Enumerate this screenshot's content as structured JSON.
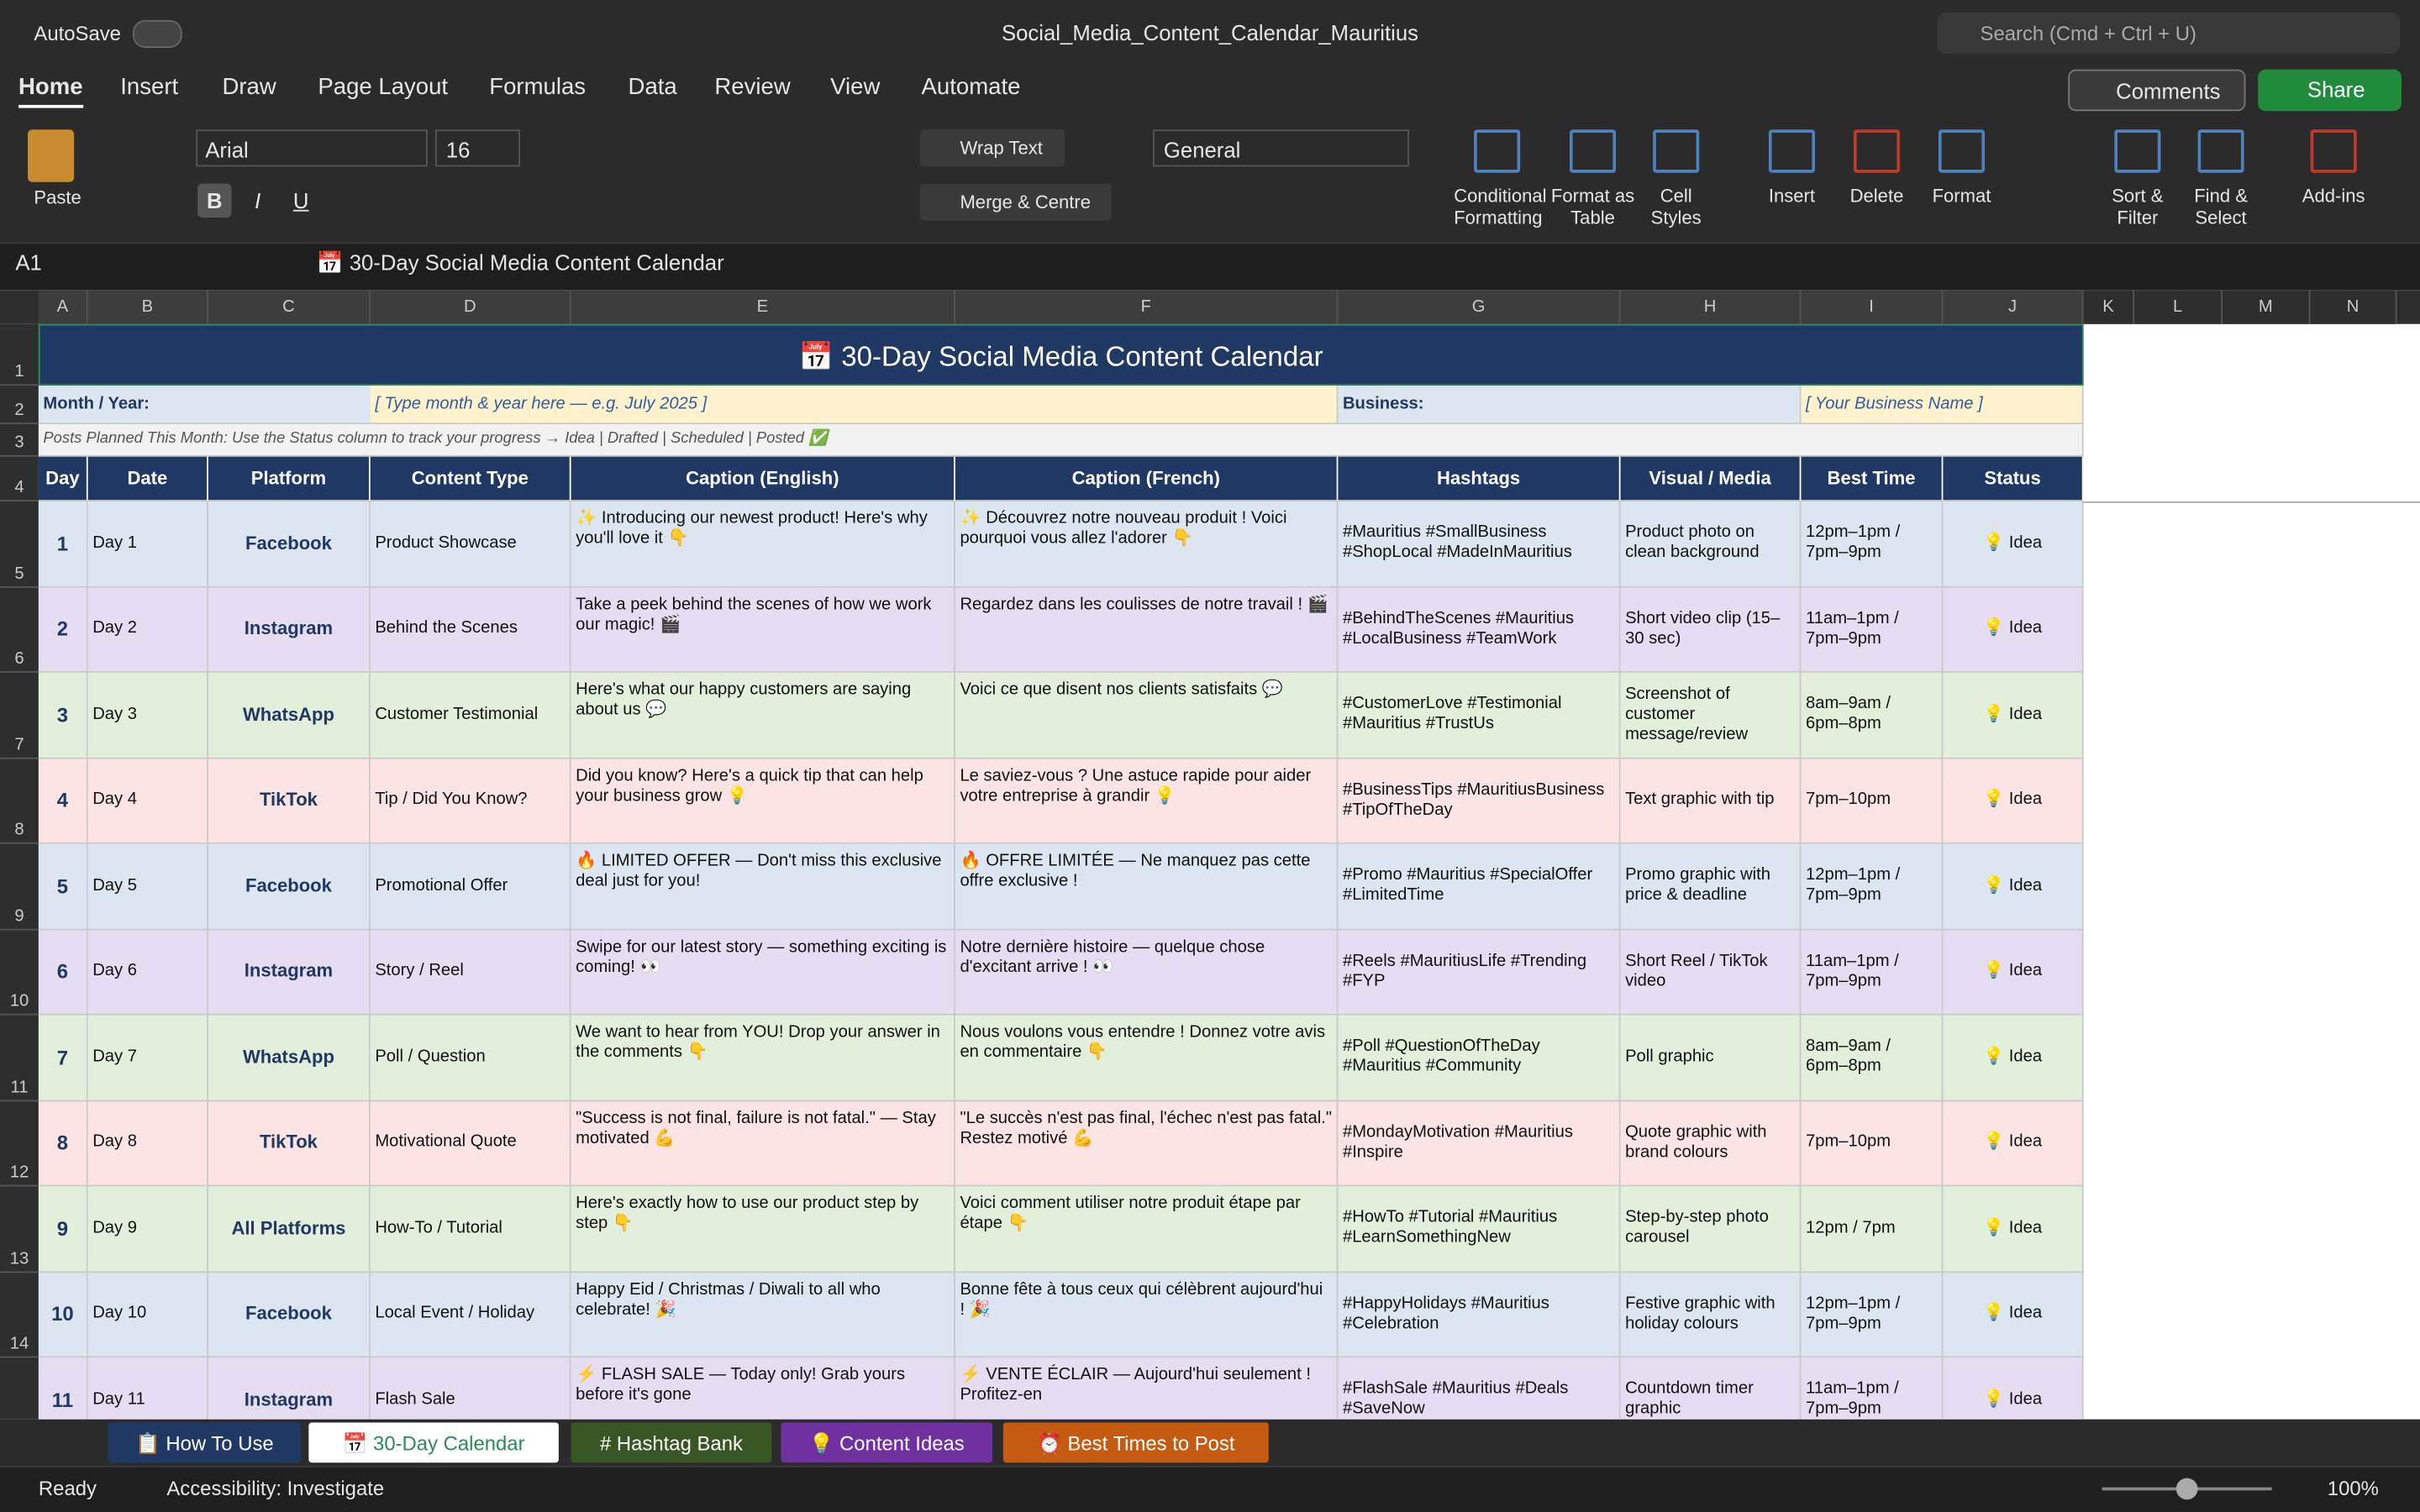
{
  "titlebar": {
    "autosave": "AutoSave",
    "filename": "Social_Media_Content_Calendar_Mauritius",
    "search": "Search (Cmd + Ctrl + U)"
  },
  "menu": [
    "Home",
    "Insert",
    "Draw",
    "Page Layout",
    "Formulas",
    "Data",
    "Review",
    "View",
    "Automate"
  ],
  "buttons": {
    "comments": "Comments",
    "share": "Share"
  },
  "ribbon": {
    "paste": "Paste",
    "font": "Arial",
    "size": "16",
    "style_buttons": [
      "B",
      "I",
      "U"
    ],
    "wrap": "Wrap Text",
    "merge": "Merge & Centre",
    "number_format": "General",
    "groups": [
      "Conditional Formatting",
      "Format as Table",
      "Cell Styles",
      "Insert",
      "Delete",
      "Format",
      "Sort & Filter",
      "Find & Select",
      "Add-ins"
    ]
  },
  "formula_bar": {
    "cell": "A1",
    "formula": "📅 30-Day Social Media Content Calendar"
  },
  "columns": [
    "A",
    "B",
    "C",
    "D",
    "E",
    "F",
    "G",
    "H",
    "I",
    "J",
    "K",
    "L",
    "M",
    "N"
  ],
  "row_numbers": [
    1,
    2,
    3,
    4,
    5,
    6,
    7,
    8,
    9,
    10,
    11,
    12,
    13,
    14
  ],
  "sheet": {
    "title": "📅 30-Day Social Media Content Calendar",
    "month_label": "Month / Year:",
    "month_value": "[ Type month & year here — e.g. July 2025 ]",
    "business_label": "Business:",
    "business_value": "[ Your Business Name ]",
    "note": "Posts Planned This Month: Use the Status column to track your progress → Idea | Drafted | Scheduled | Posted ✅",
    "headers": [
      "Day",
      "Date",
      "Platform",
      "Content Type",
      "Caption (English)",
      "Caption (French)",
      "Hashtags",
      "Visual / Media",
      "Best Time",
      "Status"
    ],
    "rows": [
      [
        1,
        "Day 1",
        "Facebook",
        "Product Showcase",
        "✨ Introducing our newest product! Here's why you'll love it 👇",
        "✨ Découvrez notre nouveau produit ! Voici pourquoi vous allez l'adorer 👇",
        "#Mauritius #SmallBusiness #ShopLocal #MadeInMauritius",
        "Product photo on clean background",
        "12pm–1pm / 7pm–9pm",
        "💡 Idea"
      ],
      [
        2,
        "Day 2",
        "Instagram",
        "Behind the Scenes",
        "Take a peek behind the scenes of how we work our magic! 🎬",
        "Regardez dans les coulisses de notre travail ! 🎬",
        "#BehindTheScenes #Mauritius #LocalBusiness #TeamWork",
        "Short video clip (15–30 sec)",
        "11am–1pm / 7pm–9pm",
        "💡 Idea"
      ],
      [
        3,
        "Day 3",
        "WhatsApp",
        "Customer Testimonial",
        "Here's what our happy customers are saying about us 💬",
        "Voici ce que disent nos clients satisfaits 💬",
        "#CustomerLove #Testimonial #Mauritius #TrustUs",
        "Screenshot of customer message/review",
        "8am–9am / 6pm–8pm",
        "💡 Idea"
      ],
      [
        4,
        "Day 4",
        "TikTok",
        "Tip / Did You Know?",
        "Did you know? Here's a quick tip that can help your business grow 💡",
        "Le saviez-vous ? Une astuce rapide pour aider votre entreprise à grandir 💡",
        "#BusinessTips #MauritiusBusiness #TipOfTheDay",
        "Text graphic with tip",
        "7pm–10pm",
        "💡 Idea"
      ],
      [
        5,
        "Day 5",
        "Facebook",
        "Promotional Offer",
        "🔥 LIMITED OFFER — Don't miss this exclusive deal just for you!",
        "🔥 OFFRE LIMITÉE — Ne manquez pas cette offre exclusive !",
        "#Promo #Mauritius #SpecialOffer #LimitedTime",
        "Promo graphic with price & deadline",
        "12pm–1pm / 7pm–9pm",
        "💡 Idea"
      ],
      [
        6,
        "Day 6",
        "Instagram",
        "Story / Reel",
        "Swipe for our latest story — something exciting is coming! 👀",
        "Notre dernière histoire — quelque chose d'excitant arrive ! 👀",
        "#Reels #MauritiusLife #Trending #FYP",
        "Short Reel / TikTok video",
        "11am–1pm / 7pm–9pm",
        "💡 Idea"
      ],
      [
        7,
        "Day 7",
        "WhatsApp",
        "Poll / Question",
        "We want to hear from YOU! Drop your answer in the comments 👇",
        "Nous voulons vous entendre ! Donnez votre avis en commentaire 👇",
        "#Poll #QuestionOfTheDay #Mauritius #Community",
        "Poll graphic",
        "8am–9am / 6pm–8pm",
        "💡 Idea"
      ],
      [
        8,
        "Day 8",
        "TikTok",
        "Motivational Quote",
        "\"Success is not final, failure is not fatal.\" — Stay motivated 💪",
        "\"Le succès n'est pas final, l'échec n'est pas fatal.\" Restez motivé 💪",
        "#MondayMotivation #Mauritius #Inspire",
        "Quote graphic with brand colours",
        "7pm–10pm",
        "💡 Idea"
      ],
      [
        9,
        "Day 9",
        "All Platforms",
        "How-To / Tutorial",
        "Here's exactly how to use our product step by step 👇",
        "Voici comment utiliser notre produit étape par étape 👇",
        "#HowTo #Tutorial #Mauritius #LearnSomethingNew",
        "Step-by-step photo carousel",
        "12pm / 7pm",
        "💡 Idea"
      ],
      [
        10,
        "Day 10",
        "Facebook",
        "Local Event / Holiday",
        "Happy Eid / Christmas / Diwali to all who celebrate! 🎉",
        "Bonne fête à tous ceux qui célèbrent aujourd'hui ! 🎉",
        "#HappyHolidays #Mauritius #Celebration",
        "Festive graphic with holiday colours",
        "12pm–1pm / 7pm–9pm",
        "💡 Idea"
      ],
      [
        11,
        "Day 11",
        "Instagram",
        "Flash Sale",
        "⚡ FLASH SALE — Today only! Grab yours before it's gone",
        "⚡ VENTE ÉCLAIR — Aujourd'hui seulement ! Profitez-en",
        "#FlashSale #Mauritius #Deals #SaveNow",
        "Countdown timer graphic",
        "11am–1pm / 7pm–9pm",
        "💡 Idea"
      ]
    ]
  },
  "tabs": [
    "📋 How To Use",
    "📅 30-Day Calendar",
    "# Hashtag Bank",
    "💡 Content Ideas",
    "⏰ Best Times to Post"
  ],
  "status": {
    "ready": "Ready",
    "accessibility": "Accessibility: Investigate",
    "zoom": "100%"
  }
}
